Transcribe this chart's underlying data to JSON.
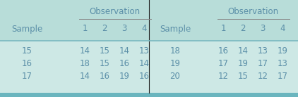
{
  "bg_color": "#cde8e5",
  "header_bg": "#b8dbd8",
  "text_color": "#5b8fa8",
  "divider_color": "#7ab8c0",
  "bottom_border_color": "#6ab5be",
  "vertical_line_color": "#333333",
  "left_table": {
    "col_header": [
      "Sample",
      "1",
      "2",
      "3",
      "4"
    ],
    "group_label": "Observation",
    "rows": [
      [
        "15",
        "14",
        "15",
        "14",
        "13"
      ],
      [
        "16",
        "18",
        "15",
        "16",
        "14"
      ],
      [
        "17",
        "14",
        "16",
        "19",
        "16"
      ]
    ]
  },
  "right_table": {
    "col_header": [
      "Sample",
      "1",
      "2",
      "3",
      "4"
    ],
    "group_label": "Observation",
    "rows": [
      [
        "18",
        "16",
        "14",
        "13",
        "19"
      ],
      [
        "19",
        "17",
        "19",
        "17",
        "13"
      ],
      [
        "20",
        "12",
        "15",
        "12",
        "17"
      ]
    ]
  },
  "fontsize": 8.5,
  "header_fontsize": 8.5
}
